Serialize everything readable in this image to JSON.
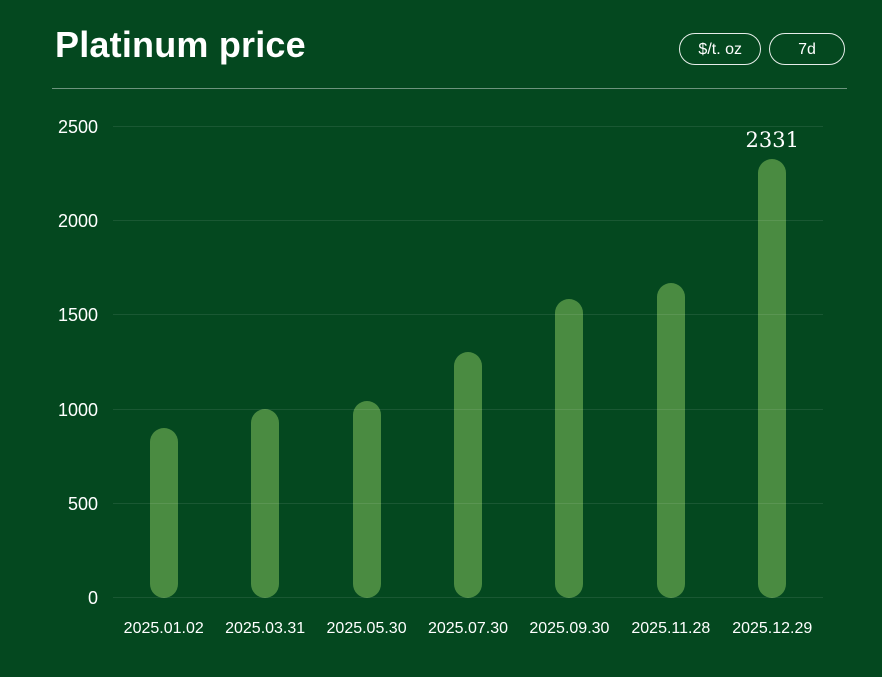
{
  "header": {
    "title": "Platinum price",
    "unit_button": "$/t. oz",
    "period_button": "7d"
  },
  "colors": {
    "background": "#04481f",
    "bar": "#4a8b41",
    "text": "#ffffff",
    "gridline": "rgba(255,255,255,0.09)",
    "divider": "rgba(255,255,255,0.42)",
    "button_border": "rgba(255,255,255,0.9)"
  },
  "chart_data": {
    "type": "bar",
    "title": "Platinum price",
    "categories": [
      "2025.01.02",
      "2025.03.31",
      "2025.05.30",
      "2025.07.30",
      "2025.09.30",
      "2025.11.28",
      "2025.12.29"
    ],
    "values": [
      905,
      1005,
      1045,
      1305,
      1585,
      1670,
      2331
    ],
    "y_ticks": [
      0,
      500,
      1000,
      1500,
      2000,
      2500
    ],
    "ylim": [
      0,
      2500
    ],
    "xlabel": "",
    "ylabel": "",
    "grid": true,
    "legend": false,
    "bar_label": {
      "index": 6,
      "text": "2331"
    }
  }
}
